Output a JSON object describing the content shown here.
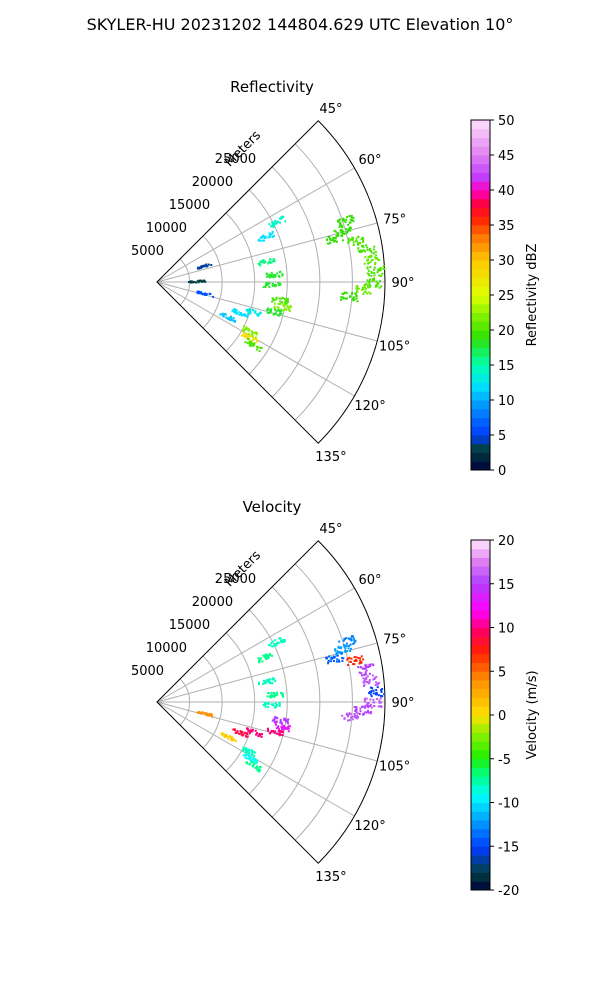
{
  "figure": {
    "title": "SKYLER-HU  20231202  144804.629 UTC Elevation 10°"
  },
  "chart_data": [
    {
      "type": "polar-sector",
      "title": "Reflectivity",
      "radial_label": "Meters",
      "theta_range_deg": [
        45,
        135
      ],
      "r_range": [
        0,
        35000
      ],
      "r_ticks": [
        5000,
        10000,
        15000,
        20000,
        25000
      ],
      "theta_ticks": [
        "45°",
        "60°",
        "75°",
        "90°",
        "105°",
        "120°",
        "135°"
      ],
      "grid": true,
      "colorbar": {
        "label": "Reflectivity dBZ",
        "range": [
          0,
          50
        ],
        "ticks": [
          "0",
          "5",
          "10",
          "15",
          "20",
          "25",
          "30",
          "35",
          "40",
          "45",
          "50"
        ]
      },
      "echoes": [
        {
          "theta": 63,
          "r": 20500,
          "value": 14
        },
        {
          "theta": 67,
          "r": 18000,
          "value": 12
        },
        {
          "theta": 72,
          "r": 30500,
          "value": 19
        },
        {
          "theta": 74,
          "r": 29500,
          "value": 19
        },
        {
          "theta": 76,
          "r": 28000,
          "value": 19
        },
        {
          "theta": 78,
          "r": 31000,
          "value": 20
        },
        {
          "theta": 81,
          "r": 32500,
          "value": 20
        },
        {
          "theta": 84,
          "r": 33000,
          "value": 21
        },
        {
          "theta": 87,
          "r": 33500,
          "value": 20
        },
        {
          "theta": 90,
          "r": 33000,
          "value": 20
        },
        {
          "theta": 92,
          "r": 31500,
          "value": 21
        },
        {
          "theta": 94,
          "r": 29500,
          "value": 19
        },
        {
          "theta": 79,
          "r": 17000,
          "value": 16
        },
        {
          "theta": 86,
          "r": 18000,
          "value": 18
        },
        {
          "theta": 91,
          "r": 17500,
          "value": 18
        },
        {
          "theta": 98,
          "r": 19000,
          "value": 20
        },
        {
          "theta": 101,
          "r": 19500,
          "value": 22
        },
        {
          "theta": 104,
          "r": 18500,
          "value": 18
        },
        {
          "theta": 107,
          "r": 15500,
          "value": 13
        },
        {
          "theta": 110,
          "r": 13500,
          "value": 12
        },
        {
          "theta": 116,
          "r": 12000,
          "value": 11
        },
        {
          "theta": 118,
          "r": 16000,
          "value": 22
        },
        {
          "theta": 121,
          "r": 16500,
          "value": 28
        },
        {
          "theta": 123,
          "r": 17500,
          "value": 20
        },
        {
          "theta": 70,
          "r": 7500,
          "value": 4
        },
        {
          "theta": 88,
          "r": 6000,
          "value": 3
        },
        {
          "theta": 103,
          "r": 7500,
          "value": 6
        }
      ]
    },
    {
      "type": "polar-sector",
      "title": "Velocity",
      "radial_label": "Meters",
      "theta_range_deg": [
        45,
        135
      ],
      "r_range": [
        0,
        35000
      ],
      "r_ticks": [
        5000,
        10000,
        15000,
        20000,
        25000
      ],
      "theta_ticks": [
        "45°",
        "60°",
        "75°",
        "90°",
        "105°",
        "120°",
        "135°"
      ],
      "grid": true,
      "colorbar": {
        "label": "Velocity (m/s)",
        "range": [
          -20,
          20
        ],
        "ticks": [
          "-20",
          "-15",
          "-10",
          "-5",
          "0",
          "5",
          "10",
          "15",
          "20"
        ]
      },
      "echoes": [
        {
          "theta": 63,
          "r": 20500,
          "value": -8
        },
        {
          "theta": 67,
          "r": 18000,
          "value": -7
        },
        {
          "theta": 72,
          "r": 30500,
          "value": -13
        },
        {
          "theta": 74,
          "r": 29500,
          "value": -12
        },
        {
          "theta": 76,
          "r": 28000,
          "value": -14
        },
        {
          "theta": 78,
          "r": 31000,
          "value": 7
        },
        {
          "theta": 81,
          "r": 32500,
          "value": 15
        },
        {
          "theta": 84,
          "r": 33000,
          "value": 16
        },
        {
          "theta": 87,
          "r": 33500,
          "value": -15
        },
        {
          "theta": 90,
          "r": 33000,
          "value": 16
        },
        {
          "theta": 92,
          "r": 31500,
          "value": 15
        },
        {
          "theta": 94,
          "r": 29500,
          "value": 16
        },
        {
          "theta": 79,
          "r": 17000,
          "value": -8
        },
        {
          "theta": 86,
          "r": 18000,
          "value": -7
        },
        {
          "theta": 91,
          "r": 17500,
          "value": -8
        },
        {
          "theta": 98,
          "r": 19000,
          "value": 15
        },
        {
          "theta": 101,
          "r": 19500,
          "value": 13
        },
        {
          "theta": 104,
          "r": 18500,
          "value": 10
        },
        {
          "theta": 107,
          "r": 15500,
          "value": 10
        },
        {
          "theta": 110,
          "r": 13500,
          "value": 9
        },
        {
          "theta": 116,
          "r": 12000,
          "value": 1
        },
        {
          "theta": 118,
          "r": 16000,
          "value": -8
        },
        {
          "theta": 121,
          "r": 16500,
          "value": -9
        },
        {
          "theta": 123,
          "r": 17500,
          "value": -7
        },
        {
          "theta": 103,
          "r": 7500,
          "value": 4
        }
      ]
    }
  ]
}
